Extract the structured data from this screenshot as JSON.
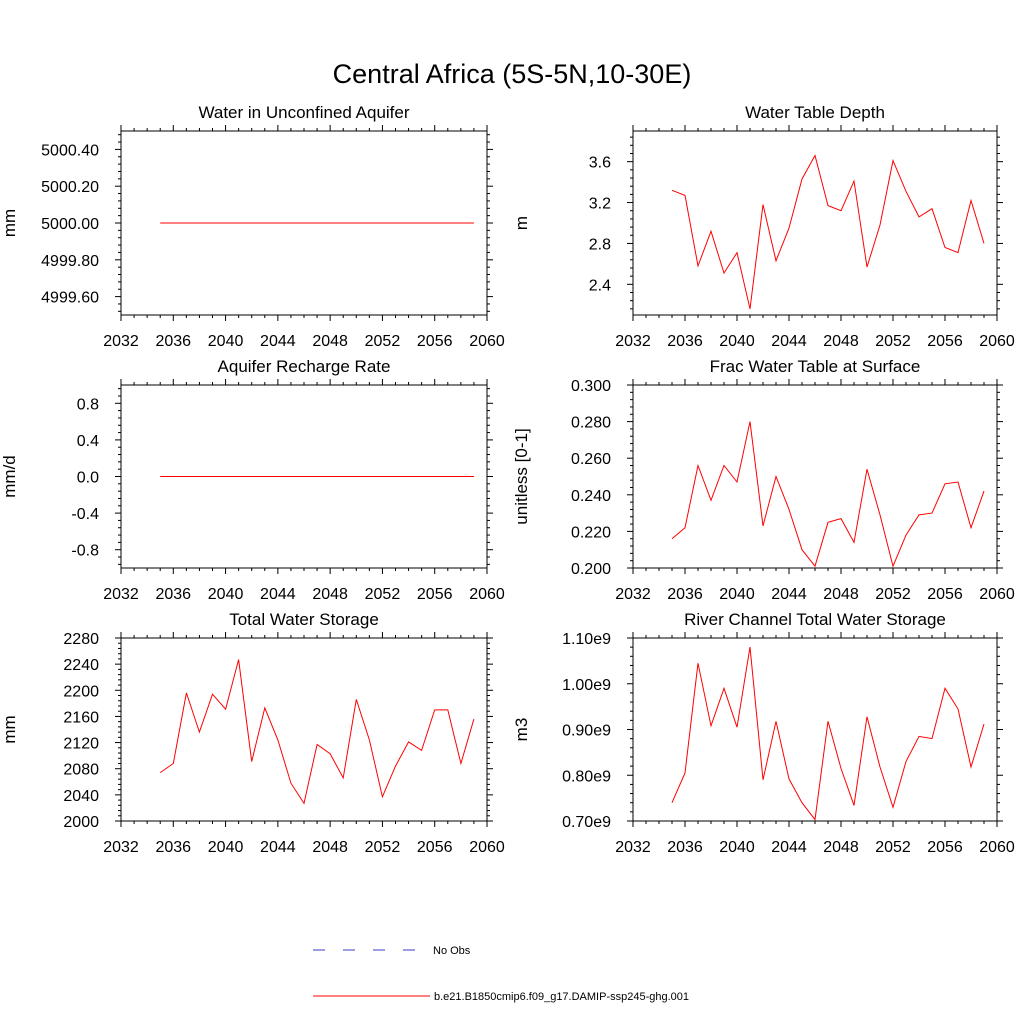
{
  "title": "Central Africa (5S-5N,10-30E)",
  "colors": {
    "model": "#ff0000",
    "obs": "#3b3bc4",
    "axes": "#000000"
  },
  "x_tick_labels": [
    "2032",
    "2036",
    "2040",
    "2044",
    "2048",
    "2052",
    "2056",
    "2060"
  ],
  "chart_data": [
    {
      "type": "line",
      "title": "Water in Unconfined Aquifer",
      "ylabel": "mm",
      "xlim": [
        2032,
        2060
      ],
      "ylim": [
        4999.5,
        5000.5
      ],
      "x_ticks": [
        2032,
        2036,
        2040,
        2044,
        2048,
        2052,
        2056,
        2060
      ],
      "y_ticks": [
        4999.6,
        4999.8,
        5000.0,
        5000.2,
        5000.4
      ],
      "y_tick_labels": [
        "4999.60",
        "4999.80",
        "5000.00",
        "5000.20",
        "5000.40"
      ],
      "x": [
        2035,
        2036,
        2037,
        2038,
        2039,
        2040,
        2041,
        2042,
        2043,
        2044,
        2045,
        2046,
        2047,
        2048,
        2049,
        2050,
        2051,
        2052,
        2053,
        2054,
        2055,
        2056,
        2057,
        2058,
        2059
      ],
      "series": [
        {
          "name": "b.e21.B1850cmip6.f09_g17.DAMIP-ssp245-ghg.001",
          "values": [
            5000,
            5000,
            5000,
            5000,
            5000,
            5000,
            5000,
            5000,
            5000,
            5000,
            5000,
            5000,
            5000,
            5000,
            5000,
            5000,
            5000,
            5000,
            5000,
            5000,
            5000,
            5000,
            5000,
            5000,
            5000
          ]
        }
      ]
    },
    {
      "type": "line",
      "title": "Water Table Depth",
      "ylabel": "m",
      "xlim": [
        2032,
        2060
      ],
      "ylim": [
        2.1,
        3.9
      ],
      "x_ticks": [
        2032,
        2036,
        2040,
        2044,
        2048,
        2052,
        2056,
        2060
      ],
      "y_ticks": [
        2.4,
        2.8,
        3.2,
        3.6
      ],
      "y_tick_labels": [
        "2.4",
        "2.8",
        "3.2",
        "3.6"
      ],
      "x": [
        2035,
        2036,
        2037,
        2038,
        2039,
        2040,
        2041,
        2042,
        2043,
        2044,
        2045,
        2046,
        2047,
        2048,
        2049,
        2050,
        2051,
        2052,
        2053,
        2054,
        2055,
        2056,
        2057,
        2058,
        2059
      ],
      "series": [
        {
          "name": "b.e21.B1850cmip6.f09_g17.DAMIP-ssp245-ghg.001",
          "values": [
            3.32,
            3.27,
            2.58,
            2.92,
            2.51,
            2.71,
            2.16,
            3.18,
            2.63,
            2.95,
            3.43,
            3.66,
            3.17,
            3.12,
            3.41,
            2.57,
            2.98,
            3.61,
            3.31,
            3.06,
            3.14,
            2.76,
            2.71,
            3.22,
            2.8
          ]
        }
      ]
    },
    {
      "type": "line",
      "title": "Aquifer Recharge Rate",
      "ylabel": "mm/d",
      "xlim": [
        2032,
        2060
      ],
      "ylim": [
        -1.0,
        1.0
      ],
      "x_ticks": [
        2032,
        2036,
        2040,
        2044,
        2048,
        2052,
        2056,
        2060
      ],
      "y_ticks": [
        -0.8,
        -0.4,
        0.0,
        0.4,
        0.8
      ],
      "y_tick_labels": [
        "-0.8",
        "-0.4",
        "0.0",
        "0.4",
        "0.8"
      ],
      "x": [
        2035,
        2036,
        2037,
        2038,
        2039,
        2040,
        2041,
        2042,
        2043,
        2044,
        2045,
        2046,
        2047,
        2048,
        2049,
        2050,
        2051,
        2052,
        2053,
        2054,
        2055,
        2056,
        2057,
        2058,
        2059
      ],
      "series": [
        {
          "name": "b.e21.B1850cmip6.f09_g17.DAMIP-ssp245-ghg.001",
          "values": [
            0,
            0,
            0,
            0,
            0,
            0,
            0,
            0,
            0,
            0,
            0,
            0,
            0,
            0,
            0,
            0,
            0,
            0,
            0,
            0,
            0,
            0,
            0,
            0,
            0
          ]
        }
      ]
    },
    {
      "type": "line",
      "title": "Frac Water Table at Surface",
      "ylabel": "unitless [0-1]",
      "xlim": [
        2032,
        2060
      ],
      "ylim": [
        0.2,
        0.3
      ],
      "x_ticks": [
        2032,
        2036,
        2040,
        2044,
        2048,
        2052,
        2056,
        2060
      ],
      "y_ticks": [
        0.2,
        0.22,
        0.24,
        0.26,
        0.28,
        0.3
      ],
      "y_tick_labels": [
        "0.200",
        "0.220",
        "0.240",
        "0.260",
        "0.280",
        "0.300"
      ],
      "x": [
        2035,
        2036,
        2037,
        2038,
        2039,
        2040,
        2041,
        2042,
        2043,
        2044,
        2045,
        2046,
        2047,
        2048,
        2049,
        2050,
        2051,
        2052,
        2053,
        2054,
        2055,
        2056,
        2057,
        2058,
        2059
      ],
      "series": [
        {
          "name": "b.e21.B1850cmip6.f09_g17.DAMIP-ssp245-ghg.001",
          "values": [
            0.216,
            0.222,
            0.256,
            0.237,
            0.256,
            0.247,
            0.28,
            0.223,
            0.25,
            0.232,
            0.21,
            0.201,
            0.225,
            0.227,
            0.214,
            0.254,
            0.229,
            0.201,
            0.218,
            0.229,
            0.23,
            0.246,
            0.247,
            0.222,
            0.242
          ]
        }
      ]
    },
    {
      "type": "line",
      "title": "Total Water Storage",
      "ylabel": "mm",
      "xlim": [
        2032,
        2060
      ],
      "ylim": [
        2000,
        2280
      ],
      "x_ticks": [
        2032,
        2036,
        2040,
        2044,
        2048,
        2052,
        2056,
        2060
      ],
      "y_ticks": [
        2000,
        2040,
        2080,
        2120,
        2160,
        2200,
        2240,
        2280
      ],
      "y_tick_labels": [
        "2000",
        "2040",
        "2080",
        "2120",
        "2160",
        "2200",
        "2240",
        "2280"
      ],
      "x": [
        2035,
        2036,
        2037,
        2038,
        2039,
        2040,
        2041,
        2042,
        2043,
        2044,
        2045,
        2046,
        2047,
        2048,
        2049,
        2050,
        2051,
        2052,
        2053,
        2054,
        2055,
        2056,
        2057,
        2058,
        2059
      ],
      "series": [
        {
          "name": "b.e21.B1850cmip6.f09_g17.DAMIP-ssp245-ghg.001",
          "values": [
            2074,
            2088,
            2196,
            2136,
            2194,
            2171,
            2247,
            2091,
            2173,
            2124,
            2058,
            2027,
            2117,
            2103,
            2066,
            2186,
            2124,
            2037,
            2084,
            2121,
            2108,
            2170,
            2170,
            2088,
            2156
          ]
        }
      ]
    },
    {
      "type": "line",
      "title": "River Channel Total Water Storage",
      "ylabel": "m3",
      "xlim": [
        2032,
        2060
      ],
      "ylim": [
        700000000.0,
        1100000000.0
      ],
      "x_ticks": [
        2032,
        2036,
        2040,
        2044,
        2048,
        2052,
        2056,
        2060
      ],
      "y_ticks": [
        700000000.0,
        800000000.0,
        900000000.0,
        1000000000.0,
        1100000000.0
      ],
      "y_tick_labels": [
        "0.70e9",
        "0.80e9",
        "0.90e9",
        "1.00e9",
        "1.10e9"
      ],
      "x": [
        2035,
        2036,
        2037,
        2038,
        2039,
        2040,
        2041,
        2042,
        2043,
        2044,
        2045,
        2046,
        2047,
        2048,
        2049,
        2050,
        2051,
        2052,
        2053,
        2054,
        2055,
        2056,
        2057,
        2058,
        2059
      ],
      "series": [
        {
          "name": "b.e21.B1850cmip6.f09_g17.DAMIP-ssp245-ghg.001",
          "values": [
            740000000.0,
            805000000.0,
            1045000000.0,
            908000000.0,
            990000000.0,
            905000000.0,
            1080000000.0,
            790000000.0,
            918000000.0,
            792000000.0,
            740000000.0,
            703000000.0,
            918000000.0,
            815000000.0,
            734000000.0,
            928000000.0,
            818000000.0,
            730000000.0,
            830000000.0,
            885000000.0,
            880000000.0,
            990000000.0,
            945000000.0,
            818000000.0,
            912000000.0
          ]
        }
      ]
    }
  ],
  "legend": {
    "items": [
      {
        "label": "No Obs",
        "style": "dashed",
        "color": "#3b3bc4"
      },
      {
        "label": "b.e21.B1850cmip6.f09_g17.DAMIP-ssp245-ghg.001",
        "style": "solid",
        "color": "#ff0000"
      }
    ]
  }
}
